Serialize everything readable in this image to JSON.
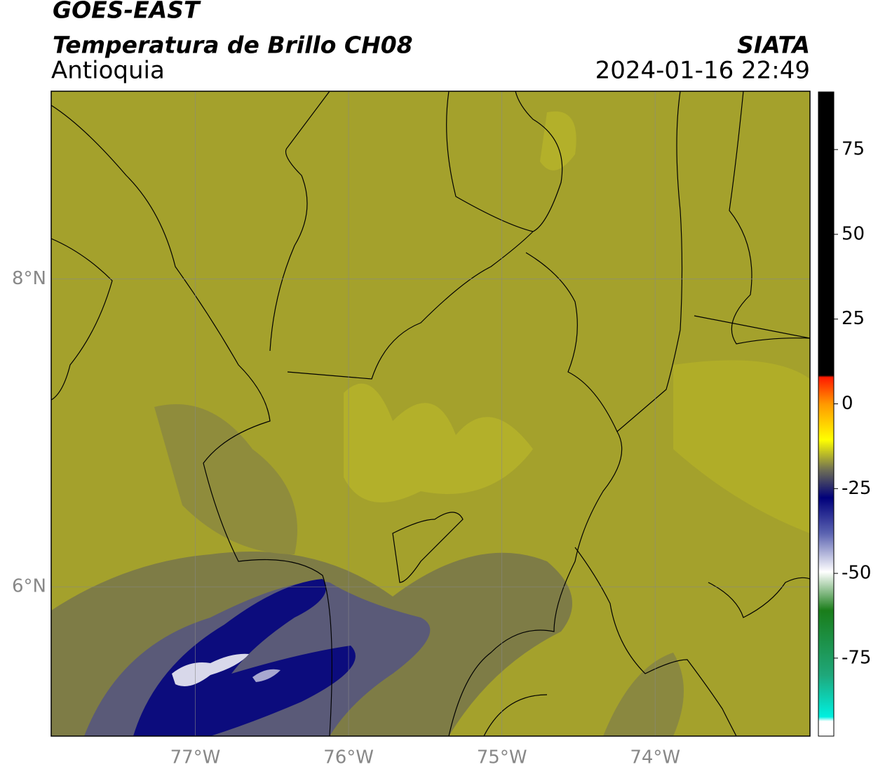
{
  "header": {
    "satellite": "GOES-EAST",
    "product": "Temperatura de Brillo CH08",
    "region": "Antioquia",
    "source": "SIATA",
    "datetime": "2024-01-16 22:49"
  },
  "map": {
    "xlim": [
      -77.94,
      -72.99
    ],
    "ylim": [
      5.03,
      9.22
    ],
    "grid": true,
    "xticks": [
      {
        "value": -77,
        "label": "77°W"
      },
      {
        "value": -76,
        "label": "76°W"
      },
      {
        "value": -75,
        "label": "75°W"
      },
      {
        "value": -74,
        "label": "74°W"
      }
    ],
    "yticks": [
      {
        "value": 8,
        "label": "8°N"
      },
      {
        "value": 6,
        "label": "6°N"
      }
    ]
  },
  "colorbar": {
    "lim": [
      -98,
      92
    ],
    "ticks": [
      75,
      50,
      25,
      0,
      -25,
      -50,
      -75
    ]
  }
}
